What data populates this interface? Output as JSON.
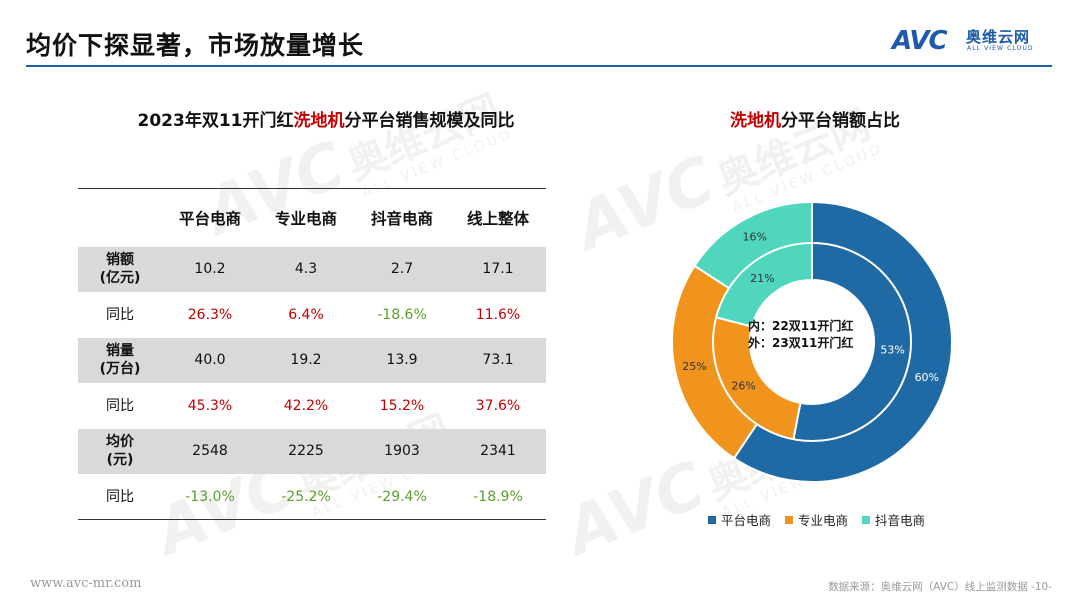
{
  "slide": {
    "title": "均价下探显著，市场放量增长",
    "logo_mark": "AVC",
    "logo_cn": "奥维云网",
    "logo_en": "ALL VIEW CLOUD"
  },
  "watermark": {
    "mark": "AVC",
    "cn": "奥维云网",
    "en": "ALL VIEW CLOUD"
  },
  "table_title": {
    "prefix": "2023年双11开门红",
    "highlight": "洗地机",
    "suffix": "分平台销售规模及同比"
  },
  "table": {
    "columns": [
      "",
      "平台电商",
      "专业电商",
      "抖音电商",
      "线上整体"
    ],
    "rows": [
      {
        "label_line1": "销额",
        "label_line2": "(亿元)",
        "values": [
          "10.2",
          "4.3",
          "2.7",
          "17.1"
        ]
      },
      {
        "label_line1": "同比",
        "label_line2": "",
        "values": [
          "26.3%",
          "6.4%",
          "-18.6%",
          "11.6%"
        ]
      },
      {
        "label_line1": "销量",
        "label_line2": "(万台)",
        "values": [
          "40.0",
          "19.2",
          "13.9",
          "73.1"
        ]
      },
      {
        "label_line1": "同比",
        "label_line2": "",
        "values": [
          "45.3%",
          "42.2%",
          "15.2%",
          "37.6%"
        ]
      },
      {
        "label_line1": "均价",
        "label_line2": "(元)",
        "values": [
          "2548",
          "2225",
          "1903",
          "2341"
        ]
      },
      {
        "label_line1": "同比",
        "label_line2": "",
        "values": [
          "-13.0%",
          "-25.2%",
          "-29.4%",
          "-18.9%"
        ]
      }
    ]
  },
  "donut_title": {
    "highlight": "洗地机",
    "suffix": "分平台销额占比"
  },
  "chart_data": {
    "type": "pie",
    "title": "洗地机分平台销额占比",
    "categories": [
      "平台电商",
      "专业电商",
      "抖音电商"
    ],
    "colors": [
      "#1f6aa5",
      "#f0941d",
      "#4fd6bd"
    ],
    "series": [
      {
        "name": "22双11开门红",
        "ring": "inner",
        "values": [
          53,
          26,
          21
        ],
        "labels": [
          "53%",
          "26%",
          "21%"
        ]
      },
      {
        "name": "23双11开门红",
        "ring": "outer",
        "values": [
          60,
          25,
          16
        ],
        "labels": [
          "60%",
          "25%",
          "16%"
        ]
      }
    ],
    "legend_position": "bottom"
  },
  "center_label": {
    "line1": "内：22双11开门红",
    "line2": "外：23双11开门红"
  },
  "footer": {
    "url": "www.avc-mr.com",
    "source": "数据来源：奥维云网（AVC）线上监测数据  -10-"
  }
}
